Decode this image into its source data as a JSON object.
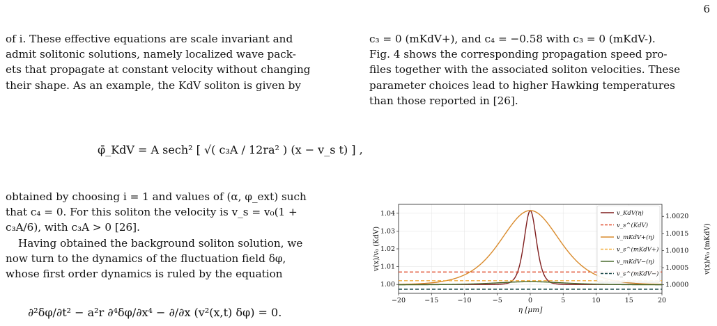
{
  "page_number": "6",
  "left_column": {
    "para1_lines": [
      "of i.  These effective equations are scale invariant and",
      "admit solitonic solutions, namely localized wave pack-",
      "ets that propagate at constant velocity without changing",
      "their shape. As an example, the KdV soliton is given by"
    ],
    "kdv_equation": "φ̄_KdV = A sech² [ √( c₃A / 12ra² ) (x − v_s t) ] ,",
    "para2_lines": [
      "obtained by choosing i = 1 and values of (α, φ_ext) such",
      "that c₄ = 0.  For this soliton the velocity is v_s = v₀(1 +",
      "c₃A/6), with c₃A > 0 [26]."
    ],
    "para3_lines": [
      "Having obtained the background soliton solution, we",
      "now turn to the dynamics of the fluctuation field δφ,",
      "whose first order dynamics is ruled by the equation"
    ],
    "fluct_equation": "∂²δφ/∂t² − a²r ∂⁴δφ/∂x⁴ − ∂/∂x (v²(x,t) δφ) = 0."
  },
  "right_column": {
    "lines": [
      "c₃ = 0 (mKdV+), and c₄ = −0.58 with c₃ = 0 (mKdV-).",
      "Fig. 4 shows the corresponding propagation speed pro-",
      "files together with the associated soliton velocities. These",
      "parameter choices lead to higher Hawking temperatures",
      "than those reported in [26]."
    ]
  },
  "chart_data": {
    "type": "line",
    "xlabel": "η [μm]",
    "ylabel_left": "v(x)/v₀ (KdV)",
    "ylabel_right": "v(x)/v₀ (mKdV)",
    "xlim": [
      -20,
      20
    ],
    "ylim_left": [
      0.995,
      1.045
    ],
    "ylim_right": [
      0.99975,
      1.00235
    ],
    "x_ticks": [
      -20,
      -15,
      -10,
      -5,
      0,
      5,
      10,
      15,
      20
    ],
    "y_ticks_left": [
      "1.00",
      "1.01",
      "1.02",
      "1.03",
      "1.04"
    ],
    "y_ticks_right": [
      "1.0000",
      "1.0005",
      "1.0010",
      "1.0015",
      "1.0020"
    ],
    "grid": true,
    "legend_position": "top-right",
    "series": [
      {
        "name": "v_KdV(η)",
        "color": "#7f1d1d",
        "style": "solid",
        "axis": "left",
        "shape": "sech2",
        "baseline": 1.0,
        "peak": 1.0415,
        "width": 1.25
      },
      {
        "name": "v_s^(KdV)",
        "color": "#e04a2a",
        "style": "dashed",
        "axis": "left",
        "value": 1.007
      },
      {
        "name": "v_mKdV+(η)",
        "color": "#d98a2b",
        "style": "solid",
        "axis": "right",
        "shape": "sech2",
        "baseline": 1.0,
        "peak": 1.00217,
        "width": 6.0
      },
      {
        "name": "v_s^(mKdV+)",
        "color": "#f2ad3c",
        "style": "dashed",
        "axis": "right",
        "value": 1.00012
      },
      {
        "name": "v_mKdV−(η)",
        "color": "#4a6b2f",
        "style": "solid",
        "axis": "right",
        "shape": "sech2",
        "baseline": 1.0,
        "peak": 1.00009,
        "width": 7.0
      },
      {
        "name": "v_s^(mKdV−)",
        "color": "#1f4d4d",
        "style": "dashed",
        "axis": "right",
        "value": 0.99987
      }
    ]
  }
}
